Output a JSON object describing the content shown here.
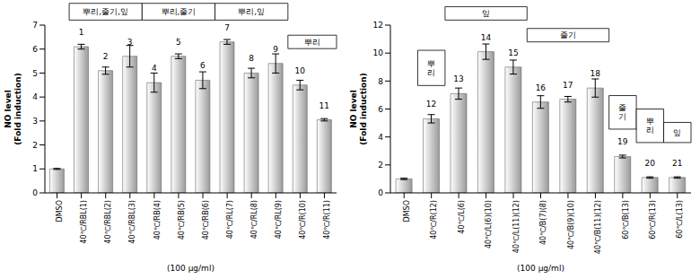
{
  "chart_data": [
    {
      "type": "bar",
      "y_label": [
        "NO level",
        "(Fold induction)"
      ],
      "x_label": "(100 μg/ml)",
      "categories": [
        "DMSO",
        "40℃/RBL(1)",
        "40℃/RBL(2)",
        "40℃/RBL(3)",
        "40℃/RB(4)",
        "40℃/RB(5)",
        "40℃/RB(6)",
        "40℃/RL(7)",
        "40℃/RL(8)",
        "40℃/RL(9)",
        "40℃/R(10)",
        "40℃/R(11)"
      ],
      "values": [
        1.0,
        6.1,
        5.1,
        5.7,
        4.6,
        5.7,
        4.7,
        6.3,
        5.0,
        5.4,
        4.5,
        3.05
      ],
      "errors": [
        0.02,
        0.1,
        0.15,
        0.45,
        0.4,
        0.1,
        0.35,
        0.1,
        0.2,
        0.4,
        0.2,
        0.05
      ],
      "numbers": [
        null,
        1,
        2,
        3,
        4,
        5,
        6,
        7,
        8,
        9,
        10,
        11
      ],
      "annotations": [
        "뿌리,줄기,잎",
        "뿌리,줄기",
        "뿌리,잎",
        "뿌리"
      ],
      "color": "#9a9a9a",
      "ylim": [
        0,
        7
      ],
      "yticks": [
        0,
        1,
        2,
        3,
        4,
        5,
        6,
        7
      ],
      "grid": false
    },
    {
      "type": "bar",
      "y_label": [
        "NO level",
        "(Fold induction)"
      ],
      "x_label": "(100 μg/ml)",
      "categories": [
        "DMSO",
        "40℃/R(12)",
        "40℃/L(6)",
        "40℃/L(6)(10)",
        "40℃/L(11)(12)",
        "40℃/B(7)(8)",
        "40℃/B(9)(10)",
        "40℃/B(11)(12)",
        "60℃/B(13)",
        "60℃/R(13)",
        "60℃/L(13)"
      ],
      "values": [
        1.0,
        5.3,
        7.1,
        10.1,
        9.0,
        6.5,
        6.7,
        7.5,
        2.6,
        1.1,
        1.1
      ],
      "errors": [
        0.05,
        0.3,
        0.4,
        0.55,
        0.5,
        0.45,
        0.2,
        0.65,
        0.1,
        0.05,
        0.05
      ],
      "numbers": [
        null,
        12,
        13,
        14,
        15,
        16,
        17,
        18,
        19,
        20,
        21
      ],
      "annotations": [
        "잎",
        "줄기",
        "뿌리",
        "줄기",
        "뿌리",
        "잎"
      ],
      "color": "#9a9a9a",
      "ylim": [
        0,
        12
      ],
      "yticks": [
        0,
        2,
        4,
        6,
        8,
        10,
        12
      ],
      "grid": false
    }
  ]
}
